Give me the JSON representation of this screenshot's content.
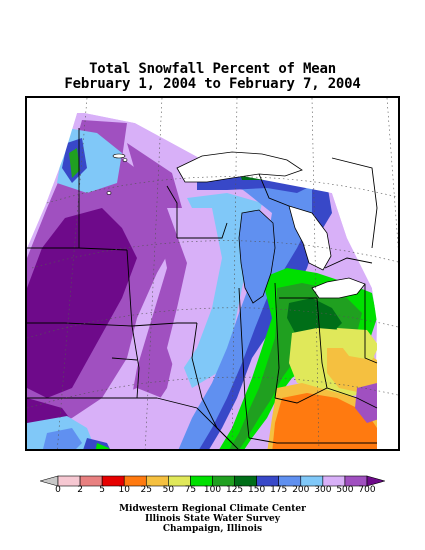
{
  "title": {
    "line1": "Total Snowfall Percent of Mean",
    "line2": "February 1, 2004 to February 7, 2004"
  },
  "legend": {
    "labels": [
      "0",
      "2",
      "5",
      "10",
      "25",
      "50",
      "75",
      "100",
      "125",
      "150",
      "175",
      "200",
      "300",
      "500",
      "700"
    ],
    "colors": [
      "#c8c8c8",
      "#f6c8d2",
      "#e88080",
      "#e60000",
      "#ff7a10",
      "#f5c040",
      "#e0e85a",
      "#00e000",
      "#20a020",
      "#006e18",
      "#3848c8",
      "#6090f0",
      "#80c8f8",
      "#d8b0f8",
      "#a050c0",
      "#6e0a8a"
    ]
  },
  "credits": {
    "line1": "Midwestern Regional Climate Center",
    "line2": "Illinois State Water Survey",
    "line3": "Champaign, Illinois"
  }
}
